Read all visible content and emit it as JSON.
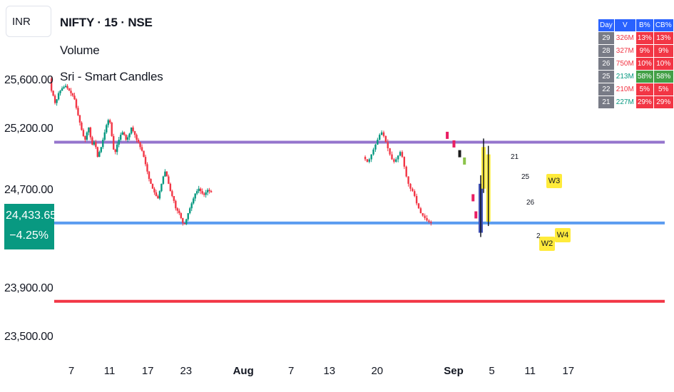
{
  "header": {
    "currency": "INR",
    "symbol_title": "NIFTY · 15 · NSE",
    "indicator_1": "Volume",
    "indicator_2": "Sri - Smart Candles"
  },
  "price_badge": {
    "price": "24,433.65",
    "change": "−4.25%",
    "color": "#089981"
  },
  "y_axis": {
    "labels": [
      {
        "text": "25,600.00",
        "value": 25600
      },
      {
        "text": "25,200.00",
        "value": 25200
      },
      {
        "text": "24,700.00",
        "value": 24700
      },
      {
        "text": "23,900.00",
        "value": 23900
      },
      {
        "text": "23,500.00",
        "value": 23500
      }
    ]
  },
  "x_axis": {
    "labels": [
      {
        "text": "7",
        "pos": 0,
        "bold": false
      },
      {
        "text": "11",
        "pos": 4,
        "bold": false
      },
      {
        "text": "17",
        "pos": 8,
        "bold": false
      },
      {
        "text": "23",
        "pos": 12,
        "bold": false
      },
      {
        "text": "Aug",
        "pos": 18,
        "bold": true
      },
      {
        "text": "7",
        "pos": 23,
        "bold": false
      },
      {
        "text": "13",
        "pos": 27,
        "bold": false
      },
      {
        "text": "20",
        "pos": 32,
        "bold": false
      },
      {
        "text": "Sep",
        "pos": 40,
        "bold": true
      },
      {
        "text": "5",
        "pos": 44,
        "bold": false
      },
      {
        "text": "11",
        "pos": 48,
        "bold": false
      },
      {
        "text": "17",
        "pos": 52,
        "bold": false
      }
    ]
  },
  "chart_data": {
    "type": "candlestick",
    "ylim": [
      23350,
      25720
    ],
    "grid": false,
    "colors": {
      "up": "#089981",
      "down": "#f23645"
    },
    "horizontal_lines": [
      {
        "value": 25100,
        "color": "#9575cd"
      },
      {
        "value": 24440,
        "color": "#5b9cf0"
      },
      {
        "value": 23800,
        "color": "#f23645"
      }
    ],
    "segments": [
      {
        "start": -0.4,
        "end": 16.5,
        "close": [
          25620,
          25520,
          25480,
          25420,
          25450,
          25500,
          25520,
          25540,
          25550,
          25560,
          25540,
          25520,
          25500,
          25480,
          25450,
          25380,
          25320,
          25260,
          25200,
          25150,
          25120,
          25180,
          25220,
          25140,
          25080,
          25100,
          25060,
          24980,
          25020,
          25060,
          25120,
          25180,
          25240,
          25280,
          25260,
          25150,
          25040,
          25020,
          25080,
          25120,
          25160,
          25180,
          25160,
          25120,
          25140,
          25170,
          25220,
          25190,
          25160,
          25120,
          25100,
          25060,
          25030,
          24980,
          24920,
          24860,
          24800,
          24760,
          24720,
          24690,
          24660,
          24640,
          24700,
          24760,
          24820,
          24860,
          24820,
          24760,
          24700,
          24660,
          24620,
          24560,
          24540,
          24520,
          24480,
          24440,
          24430,
          24470,
          24520,
          24560,
          24600,
          24640,
          24680,
          24700,
          24720,
          24700,
          24680,
          24670,
          24690,
          24710,
          24700,
          24690
        ]
      },
      {
        "start": 32.4,
        "end": 39.5,
        "close": [
          24980,
          24960,
          24940,
          24960,
          25000,
          25040,
          25080,
          25120,
          25160,
          25180,
          25150,
          25100,
          25050,
          25000,
          24960,
          24940,
          24960,
          24990,
          25020,
          24980,
          24900,
          24820,
          24760,
          24720,
          24700,
          24660,
          24600,
          24560,
          24520,
          24500,
          24480,
          24460,
          24450,
          24440
        ]
      }
    ],
    "markers": [
      {
        "x": 41.2,
        "kind": "candle",
        "value": 25150,
        "color": "#e91e63"
      },
      {
        "x": 41.9,
        "kind": "candle",
        "value": 25080,
        "color": "#e91e63"
      },
      {
        "x": 42.5,
        "kind": "candle",
        "value": 25000,
        "color": "#1b1b1b"
      },
      {
        "x": 43.0,
        "kind": "candle",
        "value": 24940,
        "color": "#8bc34a"
      },
      {
        "x": 43.9,
        "kind": "candle",
        "value": 24640,
        "color": "#e91e63"
      },
      {
        "x": 44.2,
        "kind": "candle",
        "value": 24500,
        "color": "#e91e63"
      },
      {
        "x": 44.7,
        "kind": "wave-bar",
        "low": 24360,
        "high": 24760,
        "color": "#3f51b5"
      },
      {
        "x": 45.0,
        "kind": "wave-bar",
        "low": 24720,
        "high": 25060,
        "color": "#ffeb3b"
      },
      {
        "x": 45.5,
        "kind": "wave-bar",
        "low": 24450,
        "high": 25000,
        "color": "#ffeb3b"
      }
    ],
    "wave_labels": [
      "W2",
      "W3",
      "W4"
    ],
    "count_labels": [
      "21",
      "25",
      "26",
      "2"
    ],
    "stats_table": {
      "headers": [
        "Day",
        "V",
        "B%",
        "CB%"
      ],
      "rows": [
        {
          "day": "29",
          "v": "326M",
          "b": "13%",
          "cb": "13%",
          "v_color": "#f23645",
          "b_color": "#f23645",
          "cb_color": "#f23645"
        },
        {
          "day": "28",
          "v": "327M",
          "b": "9%",
          "cb": "9%",
          "v_color": "#f23645",
          "b_color": "#f23645",
          "cb_color": "#f23645"
        },
        {
          "day": "26",
          "v": "750M",
          "b": "10%",
          "cb": "10%",
          "v_color": "#f23645",
          "b_color": "#f23645",
          "cb_color": "#f23645"
        },
        {
          "day": "25",
          "v": "213M",
          "b": "58%",
          "cb": "58%",
          "v_color": "#089981",
          "b_color": "#43a047",
          "cb_color": "#43a047"
        },
        {
          "day": "22",
          "v": "210M",
          "b": "5%",
          "cb": "5%",
          "v_color": "#f23645",
          "b_color": "#f23645",
          "cb_color": "#f23645"
        },
        {
          "day": "21",
          "v": "227M",
          "b": "29%",
          "cb": "29%",
          "v_color": "#089981",
          "b_color": "#f23645",
          "cb_color": "#f23645"
        }
      ]
    }
  }
}
